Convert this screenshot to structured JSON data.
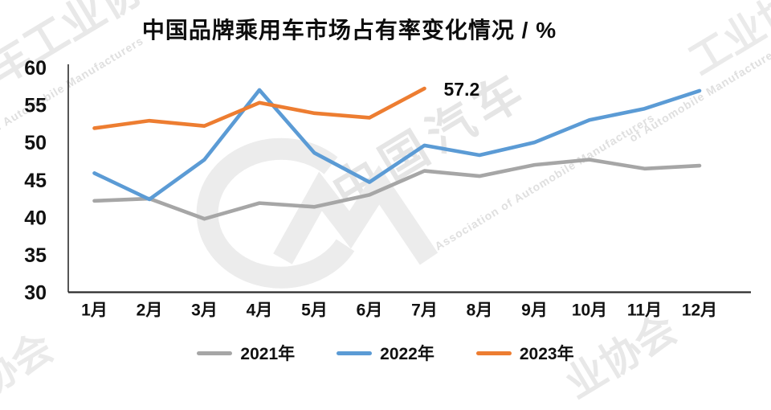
{
  "title": "中国品牌乘用车市场占有率变化情况 / %",
  "watermarks": {
    "top_left_cn": "车工业协",
    "top_left_en": "of Automobile Manufacturers",
    "top_right_cn": "工业协",
    "top_right_en": "of Automobile Manufacturers",
    "center_cn": "中国汽车",
    "center_en": "Association of Automobile Manufacturers",
    "bottom_right_cn": "业协会",
    "bottom_left_cn": "协会"
  },
  "colors": {
    "series_2021": "#A6A6A6",
    "series_2022": "#5B9BD5",
    "series_2023": "#ED7D31",
    "axis": "#2b2b2b",
    "tick_text": "#111111",
    "watermark": "#c6c6c6"
  },
  "chart_data": {
    "type": "line",
    "title": "中国品牌乘用车市场占有率变化情况 / %",
    "categories": [
      "1月",
      "2月",
      "3月",
      "4月",
      "5月",
      "6月",
      "7月",
      "8月",
      "9月",
      "10月",
      "11月",
      "12月"
    ],
    "series": [
      {
        "name": "2021年",
        "color": "#A6A6A6",
        "values": [
          42.2,
          42.5,
          39.8,
          41.9,
          41.4,
          43.0,
          46.2,
          45.5,
          47.0,
          47.7,
          46.5,
          46.9
        ]
      },
      {
        "name": "2022年",
        "color": "#5B9BD5",
        "values": [
          45.9,
          42.4,
          47.7,
          57.0,
          48.6,
          44.7,
          49.6,
          48.3,
          50.0,
          53.0,
          54.5,
          56.9
        ]
      },
      {
        "name": "2023年",
        "color": "#ED7D31",
        "values": [
          51.9,
          52.9,
          52.2,
          55.3,
          53.9,
          53.3,
          57.2
        ]
      }
    ],
    "annotation": {
      "text": "57.2",
      "series_index": 2,
      "point_index": 6
    },
    "xlabel": "",
    "ylabel": "",
    "ylim": [
      30,
      60
    ],
    "ytick_step": 5,
    "grid": false,
    "legend_position": "bottom"
  }
}
